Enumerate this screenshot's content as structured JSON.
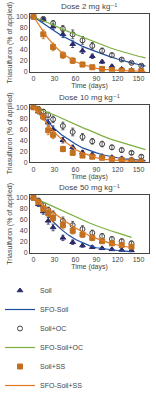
{
  "chart_data": [
    {
      "type": "scatter",
      "title": "Dose 2 mg kg⁻¹",
      "xlabel": "Time (days)",
      "ylabel": "Triasulfuron (% of applied)",
      "xlim": [
        -5,
        165
      ],
      "ylim": [
        0,
        105
      ],
      "xticks": [
        0,
        30,
        60,
        90,
        120,
        150
      ],
      "yticks": [
        0,
        20,
        40,
        60,
        80,
        100
      ],
      "grid": false,
      "series": [
        {
          "name": "Soil",
          "type": "scatter",
          "marker": "triangle-up",
          "color": "#2a2a6a",
          "x": [
            0,
            14,
            28,
            42,
            56,
            70,
            84,
            98,
            112,
            126,
            140,
            154
          ],
          "values": [
            100,
            95,
            82,
            68,
            50,
            38,
            28,
            18,
            10,
            5,
            3,
            2
          ],
          "errors": [
            2,
            4,
            5,
            6,
            6,
            5,
            4,
            3,
            2,
            2,
            1,
            1
          ]
        },
        {
          "name": "SFO-Soil",
          "type": "line",
          "color": "#1f4e9e",
          "x": [
            0,
            10,
            20,
            30,
            40,
            50,
            60,
            70,
            80,
            90,
            100,
            110,
            120,
            130,
            140,
            150,
            160
          ],
          "values": [
            100,
            91,
            82,
            74,
            66,
            59,
            52,
            46,
            41,
            36,
            31,
            27,
            23,
            19,
            16,
            13,
            10
          ]
        },
        {
          "name": "Soil+OC",
          "type": "scatter",
          "marker": "circle-open",
          "color": "#404040",
          "x": [
            0,
            14,
            28,
            42,
            56,
            70,
            84,
            98,
            112,
            126,
            140,
            154
          ],
          "values": [
            100,
            96,
            88,
            78,
            68,
            57,
            47,
            38,
            30,
            22,
            16,
            11
          ],
          "errors": [
            2,
            3,
            5,
            6,
            8,
            7,
            6,
            5,
            4,
            3,
            2,
            2
          ]
        },
        {
          "name": "SFO-Soil+OC",
          "type": "line",
          "color": "#7cb040",
          "x": [
            0,
            10,
            20,
            30,
            40,
            50,
            60,
            70,
            80,
            90,
            100,
            110,
            120,
            130,
            140,
            150,
            160
          ],
          "values": [
            100,
            95,
            89,
            84,
            78,
            73,
            68,
            62,
            57,
            52,
            47,
            43,
            39,
            35,
            31,
            28,
            25
          ]
        },
        {
          "name": "Soil+SS",
          "type": "scatter",
          "marker": "square",
          "color": "#c07020",
          "x": [
            0,
            14,
            28,
            42,
            56,
            70,
            84,
            98,
            112,
            126,
            140,
            154
          ],
          "values": [
            100,
            68,
            45,
            30,
            20,
            13,
            8,
            5,
            3,
            2,
            1,
            1
          ],
          "errors": [
            2,
            8,
            7,
            6,
            5,
            4,
            3,
            2,
            1,
            1,
            1,
            1
          ]
        },
        {
          "name": "SFO-Soil+SS",
          "type": "line",
          "color": "#e07820",
          "x": [
            0,
            10,
            20,
            30,
            40,
            50,
            60,
            70,
            80,
            90,
            100,
            110,
            120,
            130,
            140,
            150,
            160
          ],
          "values": [
            100,
            80,
            62,
            47,
            35,
            26,
            18,
            13,
            9,
            6,
            4,
            3,
            2,
            1,
            1,
            1,
            0
          ]
        }
      ]
    },
    {
      "type": "scatter",
      "title": "Dose 10 mg kg⁻¹",
      "xlabel": "Time (days)",
      "ylabel": "Triasulfuron (% of applied)",
      "xlim": [
        -5,
        165
      ],
      "ylim": [
        0,
        105
      ],
      "xticks": [
        0,
        30,
        60,
        90,
        120,
        150
      ],
      "yticks": [
        0,
        20,
        40,
        60,
        80,
        100
      ],
      "grid": false,
      "series": [
        {
          "name": "Soil",
          "type": "scatter",
          "marker": "triangle-up",
          "color": "#2a2a6a",
          "x": [
            0,
            7,
            14,
            21,
            28,
            42,
            56,
            70,
            84,
            98,
            112,
            126,
            140,
            154
          ],
          "values": [
            100,
            92,
            83,
            72,
            60,
            40,
            27,
            18,
            14,
            11,
            9,
            7,
            5,
            2
          ],
          "errors": [
            2,
            4,
            5,
            6,
            6,
            5,
            4,
            3,
            3,
            2,
            2,
            2,
            2,
            1
          ]
        },
        {
          "name": "SFO-Soil",
          "type": "line",
          "color": "#1f4e9e",
          "x": [
            0,
            10,
            20,
            30,
            40,
            50,
            60,
            70,
            80,
            90,
            100,
            110,
            120,
            130,
            140,
            150,
            160
          ],
          "values": [
            100,
            87,
            73,
            61,
            50,
            41,
            33,
            26,
            21,
            17,
            13,
            10,
            8,
            6,
            5,
            4,
            3
          ]
        },
        {
          "name": "Soil+OC",
          "type": "scatter",
          "marker": "circle-open",
          "color": "#404040",
          "x": [
            0,
            7,
            14,
            21,
            28,
            42,
            56,
            70,
            84,
            98,
            112,
            126,
            140,
            154
          ],
          "values": [
            100,
            97,
            92,
            86,
            78,
            66,
            55,
            46,
            38,
            33,
            27,
            22,
            17,
            10
          ],
          "errors": [
            2,
            3,
            4,
            5,
            6,
            7,
            7,
            6,
            5,
            5,
            4,
            4,
            3,
            3
          ]
        },
        {
          "name": "SFO-Soil+OC",
          "type": "line",
          "color": "#7cb040",
          "x": [
            0,
            10,
            20,
            30,
            40,
            50,
            60,
            70,
            80,
            90,
            100,
            110,
            120,
            130,
            140,
            150,
            160
          ],
          "values": [
            100,
            96,
            91,
            86,
            80,
            75,
            69,
            63,
            58,
            52,
            47,
            42,
            38,
            34,
            30,
            26,
            23
          ]
        },
        {
          "name": "Soil+SS",
          "type": "scatter",
          "marker": "square",
          "color": "#c07020",
          "x": [
            0,
            7,
            14,
            21,
            28,
            42,
            56,
            70,
            84,
            98,
            112,
            126,
            140,
            154
          ],
          "values": [
            100,
            95,
            83,
            58,
            50,
            24,
            17,
            12,
            10,
            8,
            6,
            4,
            3,
            1
          ],
          "errors": [
            2,
            5,
            6,
            8,
            7,
            5,
            4,
            3,
            2,
            2,
            1,
            1,
            1,
            1
          ]
        },
        {
          "name": "SFO-Soil+SS",
          "type": "line",
          "color": "#e07820",
          "x": [
            0,
            10,
            20,
            30,
            40,
            50,
            60,
            70,
            80,
            90,
            100,
            110,
            120,
            130,
            140,
            150,
            160
          ],
          "values": [
            100,
            84,
            68,
            54,
            42,
            32,
            23,
            17,
            12,
            8,
            5,
            4,
            3,
            2,
            1,
            1,
            0
          ]
        }
      ]
    },
    {
      "type": "scatter",
      "title": "Dose 50 mg kg⁻¹",
      "xlabel": "Time (days)",
      "ylabel": "Triasulfuron (% of applied)",
      "xlim": [
        -5,
        165
      ],
      "ylim": [
        0,
        105
      ],
      "xticks": [
        0,
        30,
        60,
        90,
        120,
        150
      ],
      "yticks": [
        0,
        20,
        40,
        60,
        80,
        100
      ],
      "grid": false,
      "legend": "bottom",
      "series": [
        {
          "name": "Soil",
          "type": "scatter",
          "marker": "triangle-up",
          "color": "#2a2a6a",
          "x": [
            0,
            7,
            14,
            21,
            28,
            42,
            56,
            70,
            84,
            98,
            112,
            126,
            140
          ],
          "values": [
            100,
            88,
            75,
            58,
            46,
            27,
            19,
            13,
            10,
            8,
            6,
            5,
            4
          ],
          "errors": [
            2,
            4,
            5,
            6,
            6,
            5,
            4,
            3,
            2,
            2,
            2,
            1,
            1
          ]
        },
        {
          "name": "SFO-Soil",
          "type": "line",
          "color": "#1f4e9e",
          "x": [
            0,
            10,
            20,
            30,
            40,
            50,
            60,
            70,
            80,
            90,
            100,
            110,
            120,
            130,
            140
          ],
          "values": [
            100,
            84,
            68,
            54,
            42,
            32,
            24,
            18,
            13,
            9,
            7,
            5,
            4,
            3,
            2
          ]
        },
        {
          "name": "Soil+OC",
          "type": "scatter",
          "marker": "circle-open",
          "color": "#404040",
          "x": [
            0,
            7,
            14,
            21,
            28,
            42,
            56,
            70,
            84,
            98,
            112,
            126,
            140
          ],
          "values": [
            100,
            95,
            87,
            78,
            70,
            58,
            50,
            43,
            36,
            30,
            25,
            21,
            17
          ],
          "errors": [
            2,
            3,
            4,
            5,
            6,
            7,
            7,
            6,
            5,
            5,
            4,
            4,
            4
          ]
        },
        {
          "name": "SFO-Soil+OC",
          "type": "line",
          "color": "#7cb040",
          "x": [
            0,
            10,
            20,
            30,
            40,
            50,
            60,
            70,
            80,
            90,
            100,
            110,
            120,
            130,
            140
          ],
          "values": [
            100,
            95,
            89,
            83,
            77,
            71,
            65,
            59,
            54,
            49,
            44,
            40,
            36,
            32,
            28
          ]
        },
        {
          "name": "Soil+SS",
          "type": "scatter",
          "marker": "square",
          "color": "#c07020",
          "x": [
            0,
            7,
            14,
            21,
            28,
            42,
            56,
            70,
            84,
            98,
            112,
            126,
            140
          ],
          "values": [
            100,
            92,
            80,
            72,
            63,
            50,
            40,
            33,
            27,
            21,
            17,
            14,
            11
          ],
          "errors": [
            2,
            4,
            5,
            6,
            7,
            7,
            6,
            5,
            5,
            4,
            4,
            3,
            3
          ]
        },
        {
          "name": "SFO-Soil+SS",
          "type": "line",
          "color": "#e07820",
          "x": [
            0,
            10,
            20,
            30,
            40,
            50,
            60,
            70,
            80,
            90,
            100,
            110,
            120,
            130,
            140
          ],
          "values": [
            100,
            91,
            81,
            72,
            62,
            53,
            45,
            38,
            31,
            26,
            21,
            17,
            14,
            11,
            9
          ]
        }
      ]
    }
  ]
}
